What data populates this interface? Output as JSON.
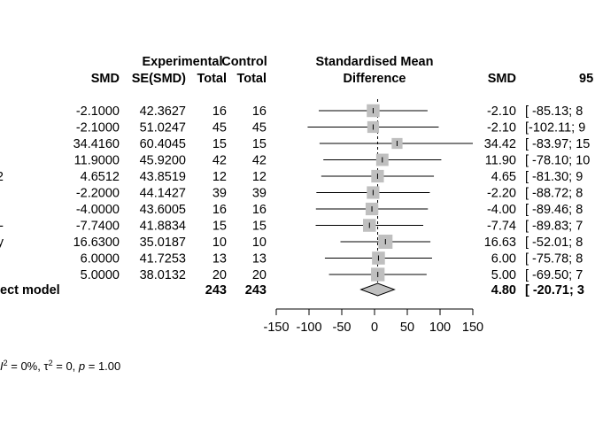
{
  "chart_data": {
    "type": "forest",
    "title": "",
    "column_headers": {
      "smd": "SMD",
      "se_smd": "SE(SMD)",
      "exp_top": "Experimental",
      "exp_bottom": "Total",
      "ctrl_top": "Control",
      "ctrl_bottom": "Total",
      "plot_top": "Standardised Mean",
      "plot_bottom": "Difference",
      "smd_right": "SMD",
      "ci_header": "95"
    },
    "studies": [
      {
        "label": "",
        "smd": "-2.1000",
        "se": "42.3627",
        "exp_total": "16",
        "ctrl_total": "16",
        "smd_right": "-2.10",
        "ci_text": "[ -85.13; 8",
        "est": -2.1,
        "lower": -85.13,
        "upper": 80.93,
        "weight": 9.1
      },
      {
        "label": "",
        "smd": "-2.1000",
        "se": "51.0247",
        "exp_total": "45",
        "ctrl_total": "45",
        "smd_right": "-2.10",
        "ci_text": "[-102.11; 9",
        "est": -2.1,
        "lower": -102.11,
        "upper": 97.91,
        "weight": 6.3
      },
      {
        "label": "",
        "smd": "34.4160",
        "se": "60.4045",
        "exp_total": "15",
        "ctrl_total": "15",
        "smd_right": "34.42",
        "ci_text": "[ -83.97; 15",
        "est": 34.42,
        "lower": -83.97,
        "upper": 152.81,
        "weight": 4.5
      },
      {
        "label": "",
        "smd": "11.9000",
        "se": "45.9200",
        "exp_total": "42",
        "ctrl_total": "42",
        "smd_right": "11.90",
        "ci_text": "[ -78.10; 10",
        "est": 11.9,
        "lower": -78.1,
        "upper": 101.9,
        "weight": 7.8
      },
      {
        "label": "2",
        "smd": "4.6512",
        "se": "43.8519",
        "exp_total": "12",
        "ctrl_total": "12",
        "smd_right": "4.65",
        "ci_text": "[ -81.30; 9",
        "est": 4.65,
        "lower": -81.3,
        "upper": 90.6,
        "weight": 8.5
      },
      {
        "label": "",
        "smd": "-2.2000",
        "se": "44.1427",
        "exp_total": "39",
        "ctrl_total": "39",
        "smd_right": "-2.20",
        "ci_text": "[ -88.72; 8",
        "est": -2.2,
        "lower": -88.72,
        "upper": 84.32,
        "weight": 8.4
      },
      {
        "label": "",
        "smd": "-4.0000",
        "se": "43.6005",
        "exp_total": "16",
        "ctrl_total": "16",
        "smd_right": "-4.00",
        "ci_text": "[ -89.46; 8",
        "est": -4.0,
        "lower": -89.46,
        "upper": 81.46,
        "weight": 8.6
      },
      {
        "label": "-",
        "smd": "-7.7400",
        "se": "41.8834",
        "exp_total": "15",
        "ctrl_total": "15",
        "smd_right": "-7.74",
        "ci_text": "[ -89.83; 7",
        "est": -7.74,
        "lower": -89.83,
        "upper": 74.35,
        "weight": 9.3
      },
      {
        "label": "y",
        "smd": "16.6300",
        "se": "35.0187",
        "exp_total": "10",
        "ctrl_total": "10",
        "smd_right": "16.63",
        "ci_text": "[ -52.01; 8",
        "est": 16.63,
        "lower": -52.01,
        "upper": 85.27,
        "weight": 13.3
      },
      {
        "label": "",
        "smd": "6.0000",
        "se": "41.7253",
        "exp_total": "13",
        "ctrl_total": "13",
        "smd_right": "6.00",
        "ci_text": "[ -75.78; 8",
        "est": 6.0,
        "lower": -75.78,
        "upper": 87.78,
        "weight": 9.4
      },
      {
        "label": "",
        "smd": "5.0000",
        "se": "38.0132",
        "exp_total": "20",
        "ctrl_total": "20",
        "smd_right": "5.00",
        "ci_text": "[ -69.50; 7",
        "est": 5.0,
        "lower": -69.5,
        "upper": 79.5,
        "weight": 11.3
      }
    ],
    "pooled": {
      "label": "ect model",
      "exp_total": "243",
      "ctrl_total": "243",
      "smd_right": "4.80",
      "ci_text": "[ -20.71; 3",
      "est": 4.8,
      "lower": -20.71,
      "upper": 30.31
    },
    "x_ticks": [
      -150,
      -100,
      -50,
      0,
      50,
      100,
      150
    ],
    "xlim": [
      -150,
      150
    ],
    "heterogeneity": {
      "i2_value": " = 0%, ",
      "tau2_value": " = 0, ",
      "p_value": " = 1.00"
    }
  }
}
